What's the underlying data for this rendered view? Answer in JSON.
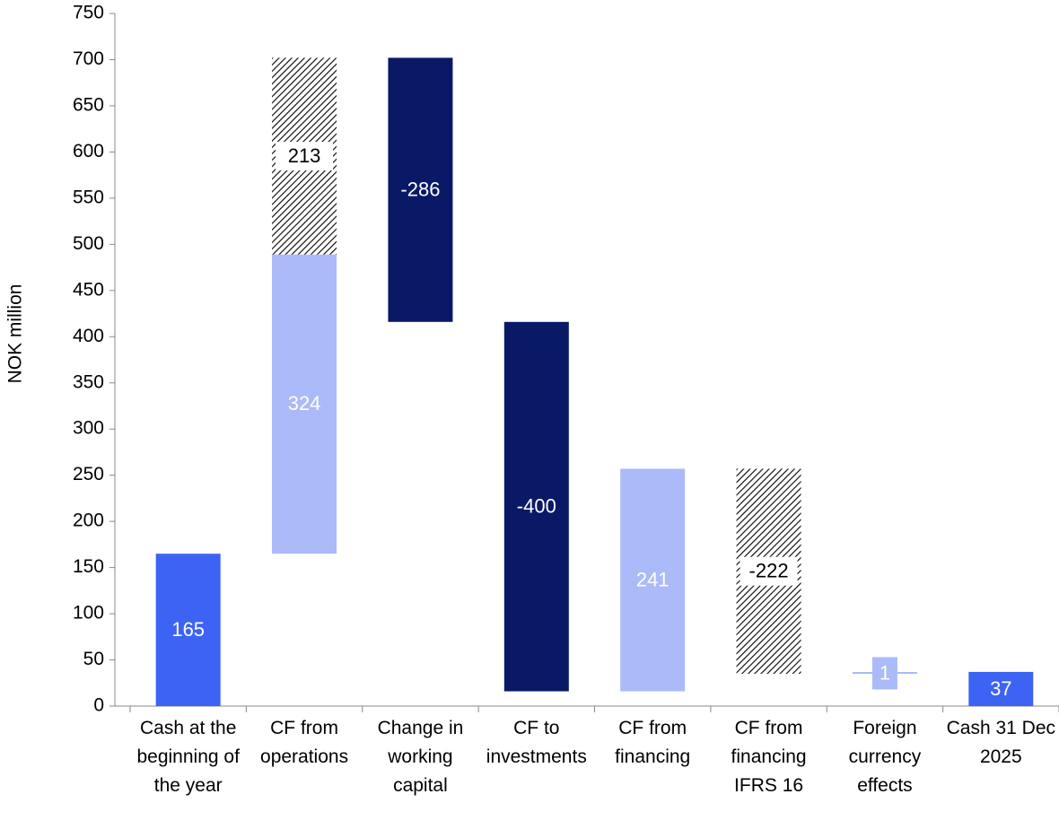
{
  "chart_data": {
    "type": "waterfall",
    "ylabel": "NOK million",
    "ylim": [
      0,
      750
    ],
    "yticks": [
      0,
      50,
      100,
      150,
      200,
      250,
      300,
      350,
      400,
      450,
      500,
      550,
      600,
      650,
      700,
      750
    ],
    "bars": [
      {
        "category": "Cash at the beginning of the year",
        "total": true,
        "segments": [
          {
            "value": 165,
            "fill": "#3d63f5"
          }
        ]
      },
      {
        "category": "CF from operations",
        "segments": [
          {
            "value": 324,
            "fill": "#abbaf8"
          },
          {
            "value": 213,
            "fill": "hatch"
          }
        ]
      },
      {
        "category": "Change in working capital",
        "segments": [
          {
            "value": -286,
            "fill": "#0a1966"
          }
        ]
      },
      {
        "category": "CF to investments",
        "segments": [
          {
            "value": -400,
            "fill": "#0a1966"
          }
        ]
      },
      {
        "category": "CF from financing",
        "segments": [
          {
            "value": 241,
            "fill": "#abbaf8"
          }
        ]
      },
      {
        "category": "CF from financing IFRS 16",
        "segments": [
          {
            "value": -222,
            "fill": "hatch"
          }
        ]
      },
      {
        "category": "Foreign currency effects",
        "segments": [
          {
            "value": 1,
            "fill": "#abbaf8"
          }
        ]
      },
      {
        "category": "Cash 31 Dec 2025",
        "total": true,
        "segments": [
          {
            "value": 37,
            "fill": "#3d63f5"
          }
        ]
      }
    ]
  }
}
